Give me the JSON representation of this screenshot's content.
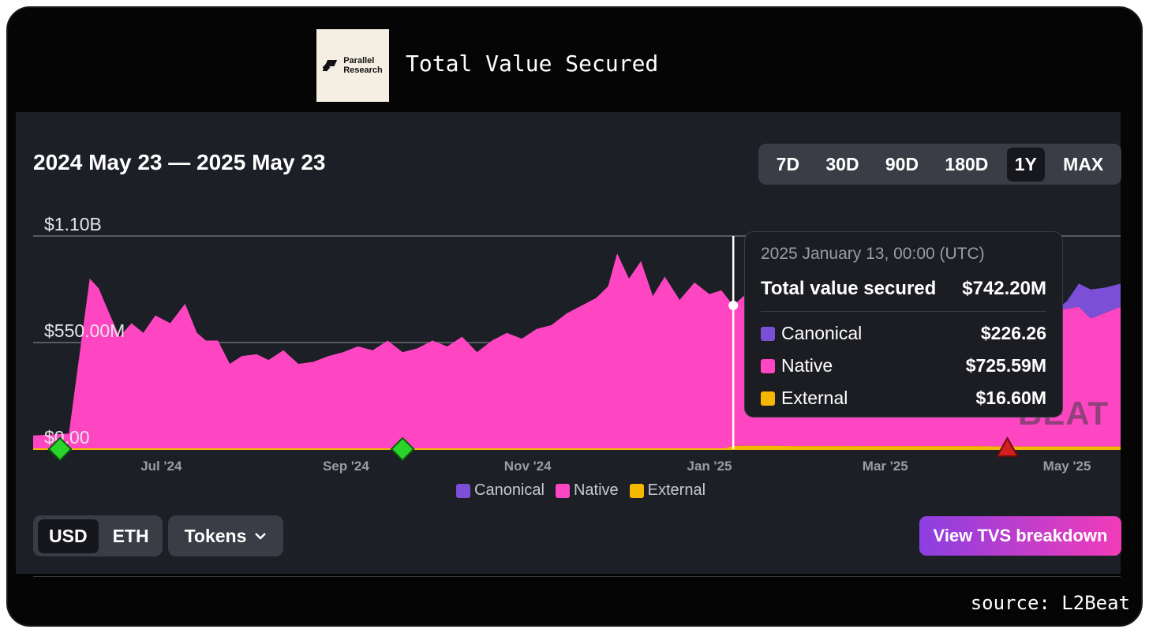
{
  "header": {
    "logo_line1": "Parallel",
    "logo_line2": "Research",
    "title": "Total Value Secured"
  },
  "panel": {
    "date_range": "2024 May 23 — 2025 May 23",
    "range_tabs": [
      "7D",
      "30D",
      "90D",
      "180D",
      "1Y",
      "MAX"
    ],
    "active_range": "1Y",
    "unit_options": [
      "USD",
      "ETH"
    ],
    "active_unit": "USD",
    "tokens_label": "Tokens",
    "view_button_label": "View TVS breakdown",
    "watermark": "BEAT"
  },
  "tooltip": {
    "date": "2025 January 13, 00:00 (UTC)",
    "total_label": "Total value secured",
    "total_value": "$742.20M",
    "rows": [
      {
        "label": "Canonical",
        "value": "$226.26",
        "color": "#7b4fd6"
      },
      {
        "label": "Native",
        "value": "$725.59M",
        "color": "#ff46c2"
      },
      {
        "label": "External",
        "value": "$16.60M",
        "color": "#f5b800"
      }
    ]
  },
  "source_note": "source: L2Beat",
  "chart_data": {
    "type": "area",
    "stacked": true,
    "x_ticks": [
      "Jul '24",
      "Sep '24",
      "Nov '24",
      "Jan '25",
      "Mar '25",
      "May '25"
    ],
    "y_ticks": [
      "$1.10B",
      "$550.00M",
      "$0.00"
    ],
    "ylim": [
      0,
      1100
    ],
    "y_unit": "$M",
    "x": [
      "2024-05-23",
      "2024-06-04",
      "2024-06-11",
      "2024-06-14",
      "2024-06-17",
      "2024-06-21",
      "2024-06-25",
      "2024-06-29",
      "2024-07-03",
      "2024-07-08",
      "2024-07-13",
      "2024-07-17",
      "2024-07-20",
      "2024-07-24",
      "2024-07-28",
      "2024-08-01",
      "2024-08-06",
      "2024-08-10",
      "2024-08-15",
      "2024-08-20",
      "2024-08-25",
      "2024-08-30",
      "2024-09-04",
      "2024-09-09",
      "2024-09-14",
      "2024-09-19",
      "2024-09-24",
      "2024-09-29",
      "2024-10-04",
      "2024-10-09",
      "2024-10-14",
      "2024-10-19",
      "2024-10-24",
      "2024-10-29",
      "2024-11-03",
      "2024-11-08",
      "2024-11-13",
      "2024-11-18",
      "2024-11-23",
      "2024-11-28",
      "2024-12-02",
      "2024-12-05",
      "2024-12-09",
      "2024-12-13",
      "2024-12-17",
      "2024-12-21",
      "2024-12-26",
      "2024-12-31",
      "2025-01-05",
      "2025-01-09",
      "2025-01-13",
      "2025-01-17",
      "2025-01-21",
      "2025-01-26",
      "2025-02-01",
      "2025-02-08",
      "2025-02-15",
      "2025-02-22",
      "2025-03-01",
      "2025-03-08",
      "2025-03-15",
      "2025-03-22",
      "2025-03-29",
      "2025-04-05",
      "2025-04-12",
      "2025-04-19",
      "2025-04-26",
      "2025-05-01",
      "2025-05-05",
      "2025-05-09",
      "2025-05-13",
      "2025-05-18",
      "2025-05-23"
    ],
    "series": [
      {
        "name": "Native",
        "color": "#ff46c2",
        "values": [
          70,
          80,
          880,
          830,
          720,
          580,
          650,
          600,
          690,
          650,
          750,
          600,
          560,
          560,
          440,
          480,
          490,
          460,
          510,
          440,
          450,
          480,
          500,
          530,
          510,
          560,
          500,
          520,
          560,
          530,
          580,
          500,
          560,
          600,
          570,
          620,
          640,
          700,
          740,
          780,
          840,
          1010,
          880,
          970,
          790,
          890,
          770,
          860,
          800,
          820,
          725,
          780,
          740,
          770,
          720,
          760,
          700,
          740,
          690,
          730,
          680,
          720,
          700,
          710,
          690,
          700,
          680,
          700,
          710,
          720,
          660,
          690,
          720
        ]
      },
      {
        "name": "Canonical",
        "color": "#7b4fd6",
        "values": [
          0,
          0,
          0,
          0,
          0,
          0,
          0,
          0,
          0,
          0,
          0,
          0,
          0,
          0,
          0,
          0,
          0,
          0,
          0,
          0,
          0,
          0,
          0,
          0,
          0,
          0,
          0,
          0,
          0,
          0,
          0,
          0,
          0,
          0,
          0,
          0,
          0,
          0,
          0,
          0,
          0,
          0,
          0,
          0,
          0,
          0,
          0,
          0,
          0,
          0,
          0,
          0,
          0,
          0,
          0,
          0,
          0,
          0,
          0,
          0,
          0,
          0,
          0,
          0,
          0,
          0,
          0,
          0,
          40,
          120,
          150,
          130,
          120
        ]
      },
      {
        "name": "External",
        "color": "#f5b800",
        "values": [
          0,
          0,
          0,
          0,
          0,
          0,
          0,
          0,
          0,
          0,
          0,
          0,
          0,
          0,
          0,
          0,
          0,
          0,
          0,
          0,
          0,
          0,
          0,
          0,
          0,
          0,
          0,
          0,
          0,
          0,
          0,
          0,
          0,
          0,
          0,
          0,
          0,
          0,
          0,
          0,
          0,
          0,
          0,
          0,
          0,
          0,
          0,
          0,
          0,
          0,
          16.6,
          17,
          17,
          17,
          16,
          16,
          16,
          16,
          15,
          15,
          15,
          15,
          15,
          15,
          14,
          14,
          14,
          14,
          14,
          14,
          14,
          14,
          14
        ]
      }
    ],
    "legend": [
      "Canonical",
      "Native",
      "External"
    ],
    "legend_position": "bottom",
    "hover_date": "2025-01-13",
    "markers": [
      {
        "date": "2024-06-01",
        "kind": "green-diamond"
      },
      {
        "date": "2024-09-24",
        "kind": "green-diamond"
      },
      {
        "date": "2025-04-15",
        "kind": "red-triangle"
      }
    ],
    "grid": true
  }
}
